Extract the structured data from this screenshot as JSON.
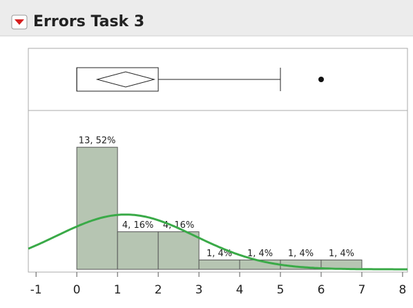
{
  "chart_data": {
    "type": "histogram",
    "title": "Errors Task 3",
    "bins": [
      0,
      1,
      2,
      3,
      4,
      5,
      6,
      7
    ],
    "values": [
      13,
      4,
      4,
      1,
      1,
      1,
      1
    ],
    "value_labels": [
      "13, 52%",
      "4, 16%",
      "4, 16%",
      "1, 4%",
      "1, 4%",
      "1, 4%",
      "1, 4%"
    ],
    "color": "#b6c5b2",
    "xlim": [
      -1.19,
      8.12
    ],
    "xticks": [
      -1,
      0,
      1,
      2,
      3,
      4,
      5,
      6,
      7,
      8
    ],
    "normal_fit": {
      "mean": 1.2,
      "sd": 1.71,
      "color": "#3aaa48"
    },
    "boxplot": {
      "q1": 0,
      "median": 0,
      "q3": 2,
      "whisker_low": 0,
      "whisker_high": 5,
      "outliers": [
        6
      ],
      "mean": 1.2,
      "mean_ci": [
        0.5,
        1.9
      ]
    }
  }
}
